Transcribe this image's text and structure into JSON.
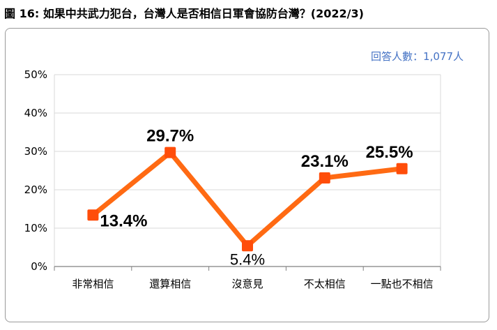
{
  "figure": {
    "title": "圖 16:  如果中共武力犯台，台灣人是否相信日軍會協防台灣？(2022/3)",
    "respondents": "回答人數：1,077人"
  },
  "colors": {
    "line": "#ff6a13",
    "marker": "#ff4d0a",
    "grid": "#d9d9d9",
    "axis": "#808080"
  },
  "chart_data": {
    "type": "line",
    "categories": [
      "非常相信",
      "還算相信",
      "沒意見",
      "不太相信",
      "一點也不相信"
    ],
    "values": [
      13.4,
      29.7,
      5.4,
      23.1,
      25.5
    ],
    "value_labels": [
      "13.4%",
      "29.7%",
      "5.4%",
      "23.1%",
      "25.5%"
    ],
    "title": "",
    "xlabel": "",
    "ylabel": "",
    "ylim": [
      0,
      50
    ],
    "yticks": [
      0,
      10,
      20,
      30,
      40,
      50
    ],
    "ytick_labels": [
      "0%",
      "10%",
      "20%",
      "30%",
      "40%",
      "50%"
    ],
    "grid": true,
    "legend": "none"
  }
}
